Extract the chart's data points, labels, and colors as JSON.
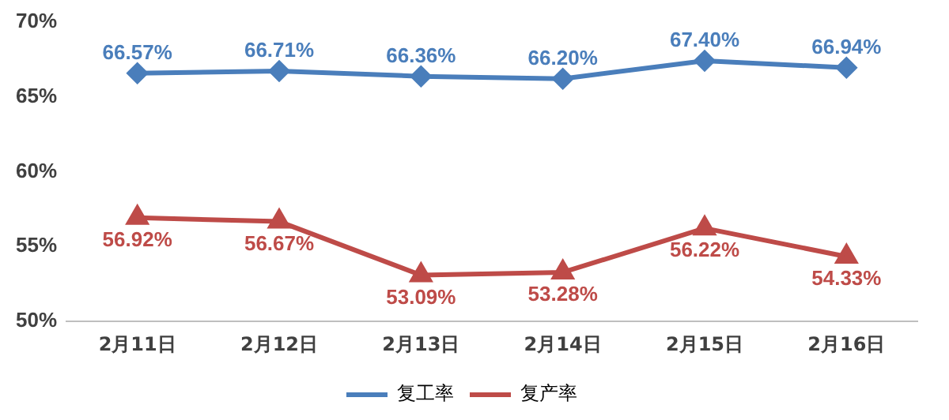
{
  "chart_data": {
    "type": "line",
    "categories": [
      "2月11日",
      "2月12日",
      "2月13日",
      "2月14日",
      "2月15日",
      "2月16日"
    ],
    "series": [
      {
        "name": "复工率",
        "color": "#4a7ebb",
        "marker": "diamond",
        "values": [
          66.57,
          66.71,
          66.36,
          66.2,
          67.4,
          66.94
        ],
        "value_labels": [
          "66.57%",
          "66.71%",
          "66.36%",
          "66.20%",
          "67.40%",
          "66.94%"
        ]
      },
      {
        "name": "复产率",
        "color": "#be4b48",
        "marker": "triangle",
        "values": [
          56.92,
          56.67,
          53.09,
          53.28,
          56.22,
          54.33
        ],
        "value_labels": [
          "56.92%",
          "56.67%",
          "53.09%",
          "53.28%",
          "56.22%",
          "54.33%"
        ]
      }
    ],
    "ylim": [
      50,
      70
    ],
    "yticks": [
      {
        "value": 50,
        "label": "50%"
      },
      {
        "value": 55,
        "label": "55%"
      },
      {
        "value": 60,
        "label": "60%"
      },
      {
        "value": 65,
        "label": "65%"
      },
      {
        "value": 70,
        "label": "70%"
      }
    ],
    "grid": false,
    "legend": "bottom",
    "line_style": "solid"
  }
}
